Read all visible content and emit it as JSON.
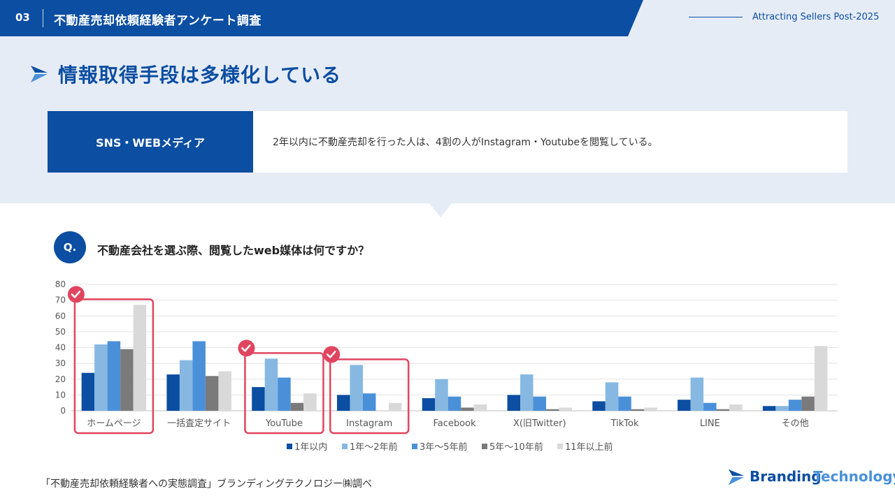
{
  "header": {
    "number": "03",
    "title": "不動産売却依頼経験者アンケート調査",
    "right_text": "Attracting Sellers Post-2025"
  },
  "page_title": "情報取得手段は多様化している",
  "info": {
    "label": "SNS・WEBメディア",
    "text": "2年以内に不動産売却を行った人は、4割の人がInstagram・Youtubeを閲覧している。"
  },
  "question": {
    "badge": "Q.",
    "text": "不動産会社を選ぶ際、閲覧したweb媒体は何ですか？"
  },
  "chart_data": {
    "type": "bar",
    "categories": [
      "ホームページ",
      "一括査定サイト",
      "YouTube",
      "Instagram",
      "Facebook",
      "X(旧Twitter)",
      "TikTok",
      "LINE",
      "その他"
    ],
    "series": [
      {
        "name": "1年以内",
        "color": "#0b4ea2",
        "values": [
          24,
          23,
          15,
          10,
          8,
          10,
          6,
          7,
          3
        ]
      },
      {
        "name": "1年〜2年前",
        "color": "#86b8e2",
        "values": [
          42,
          32,
          33,
          29,
          20,
          23,
          18,
          21,
          3
        ]
      },
      {
        "name": "3年〜5年前",
        "color": "#4a90d9",
        "values": [
          44,
          44,
          21,
          11,
          9,
          9,
          9,
          5,
          7
        ]
      },
      {
        "name": "5年〜10年前",
        "color": "#7a7a7a",
        "values": [
          39,
          22,
          5,
          0,
          2,
          1,
          1,
          1,
          9
        ]
      },
      {
        "name": "11年以上前",
        "color": "#d9d9d9",
        "values": [
          67,
          25,
          11,
          5,
          4,
          2,
          2,
          4,
          41
        ]
      }
    ],
    "ylim": [
      0,
      80
    ],
    "yticks": [
      0,
      10,
      20,
      30,
      40,
      50,
      60,
      70,
      80
    ],
    "grid": true,
    "legend": "bottom",
    "highlighted": [
      "ホームページ",
      "YouTube",
      "Instagram"
    ],
    "highlight_color": "#e0455f"
  },
  "footer": {
    "source": "「不動産売却依頼経験者への実態調査」ブランディングテクノロジー㈱調べ",
    "brand_part1": "Branding",
    "brand_part2": "Technology"
  }
}
